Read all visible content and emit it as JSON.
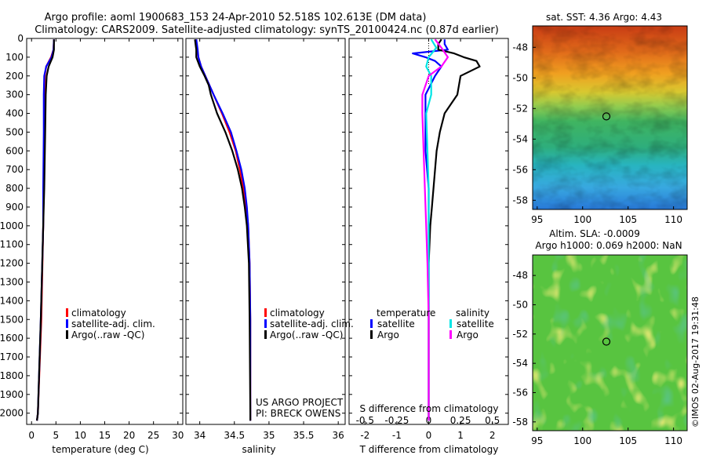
{
  "title": {
    "line1": "Argo profile: aoml 1900683_153 24-Apr-2010 52.518S 102.613E (DM data)",
    "line2": "Climatology: CARS2009. Satellite-adjusted climatology: synTS_20100424.nc (0.87d earlier)"
  },
  "colors": {
    "climatology": "#ff0000",
    "satellite": "#0000ff",
    "argo": "#000000",
    "sal_satellite": "#00e5e5",
    "sal_argo": "#ff00ff"
  },
  "project_note": {
    "line1": "US ARGO PROJECT",
    "line2": "PI: BRECK OWENS"
  },
  "watermark": "©IMOS 02-Aug-2017 19:31:48",
  "chart_data": [
    {
      "id": "temperature",
      "type": "line",
      "xlabel": "temperature (deg C)",
      "ylabel": "",
      "xlim": [
        -1,
        31
      ],
      "ylim": [
        2060,
        0
      ],
      "xticks": [
        "0",
        "5",
        "10",
        "15",
        "20",
        "25",
        "30"
      ],
      "xtick_values": [
        0,
        5,
        10,
        15,
        20,
        25,
        30
      ],
      "yticks": [
        "0",
        "100",
        "200",
        "300",
        "400",
        "500",
        "600",
        "700",
        "800",
        "900",
        "1000",
        "1100",
        "1200",
        "1300",
        "1400",
        "1500",
        "1600",
        "1700",
        "1800",
        "1900",
        "2000"
      ],
      "ytick_values": [
        0,
        100,
        200,
        300,
        400,
        500,
        600,
        700,
        800,
        900,
        1000,
        1100,
        1200,
        1300,
        1400,
        1500,
        1600,
        1700,
        1800,
        1900,
        2000
      ],
      "legend": [
        "climatology",
        "satellite-adj. clim.",
        "Argo(..raw -QC)"
      ],
      "series": [
        {
          "name": "climatology",
          "color": "#ff0000",
          "depth": [
            5,
            60,
            100,
            150,
            200,
            300,
            500,
            800,
            1000,
            1500,
            2000,
            2040
          ],
          "values": [
            4.6,
            4.5,
            4.0,
            3.0,
            2.7,
            2.6,
            2.6,
            2.5,
            2.4,
            2.0,
            1.3,
            1.1
          ]
        },
        {
          "name": "satellite-adj. clim.",
          "color": "#0000ff",
          "depth": [
            5,
            60,
            100,
            150,
            200,
            300,
            500,
            800,
            1000,
            1500,
            2000,
            2040
          ],
          "values": [
            4.6,
            4.5,
            4.1,
            3.0,
            2.6,
            2.5,
            2.5,
            2.4,
            2.4,
            1.9,
            1.3,
            1.1
          ]
        },
        {
          "name": "Argo(..raw -QC)",
          "color": "#000000",
          "depth": [
            5,
            60,
            100,
            150,
            200,
            300,
            500,
            800,
            1000,
            1500,
            2000,
            2040
          ],
          "values": [
            4.6,
            4.6,
            4.3,
            3.5,
            3.1,
            2.9,
            2.8,
            2.6,
            2.4,
            1.9,
            1.3,
            1.1
          ]
        }
      ]
    },
    {
      "id": "salinity",
      "type": "line",
      "xlabel": "salinity",
      "ylabel": "",
      "xlim": [
        33.8,
        36.1
      ],
      "ylim": [
        2060,
        0
      ],
      "xticks": [
        "34",
        "34.5",
        "35",
        "35.5",
        "36"
      ],
      "xtick_values": [
        34,
        34.5,
        35,
        35.5,
        36
      ],
      "legend": [
        "climatology",
        "satellite-adj. clim.",
        "Argo(..raw -QC)"
      ],
      "series": [
        {
          "name": "climatology",
          "color": "#ff0000",
          "depth": [
            5,
            60,
            100,
            150,
            200,
            250,
            300,
            400,
            500,
            600,
            700,
            800,
            900,
            1000,
            1200,
            1500,
            2000,
            2040
          ],
          "values": [
            33.95,
            33.96,
            33.98,
            34.02,
            34.08,
            34.14,
            34.2,
            34.32,
            34.43,
            34.52,
            34.58,
            34.63,
            34.67,
            34.7,
            34.72,
            34.73,
            34.73,
            34.73
          ]
        },
        {
          "name": "satellite-adj. clim.",
          "color": "#0000ff",
          "depth": [
            5,
            60,
            100,
            150,
            200,
            250,
            300,
            400,
            500,
            600,
            700,
            800,
            900,
            1000,
            1200,
            1500,
            2000,
            2040
          ],
          "values": [
            33.95,
            33.97,
            33.98,
            34.02,
            34.08,
            34.14,
            34.2,
            34.33,
            34.45,
            34.53,
            34.6,
            34.65,
            34.68,
            34.7,
            34.72,
            34.73,
            34.73,
            34.73
          ]
        },
        {
          "name": "Argo(..raw -QC)",
          "color": "#000000",
          "depth": [
            5,
            60,
            100,
            150,
            200,
            250,
            300,
            400,
            500,
            600,
            700,
            800,
            900,
            1000,
            1200,
            1500,
            2000,
            2040
          ],
          "values": [
            33.93,
            33.95,
            33.95,
            34.0,
            34.07,
            34.13,
            34.16,
            34.25,
            34.37,
            34.47,
            34.55,
            34.61,
            34.65,
            34.68,
            34.71,
            34.72,
            34.73,
            34.73
          ]
        }
      ]
    },
    {
      "id": "difference",
      "type": "line",
      "xlabel": "T difference from climatology",
      "x2label": "S difference from climatology",
      "ylabel": "",
      "xlim": [
        -2.5,
        2.5
      ],
      "x2lim": [
        -0.625,
        0.625
      ],
      "ylim": [
        2060,
        0
      ],
      "xticks": [
        "-2",
        "-1",
        "0",
        "1",
        "2"
      ],
      "xtick_values": [
        -2,
        -1,
        0,
        1,
        2
      ],
      "x2ticks": [
        "-0.5",
        "-0.25",
        "0",
        "0.25",
        "0.5"
      ],
      "x2tick_values": [
        -0.5,
        -0.25,
        0,
        0.25,
        0.5
      ],
      "legend": {
        "temperature": [
          "satellite",
          "Argo"
        ],
        "salinity": [
          "satellite",
          "Argo"
        ]
      },
      "legend_titles": [
        "temperature",
        "salinity"
      ],
      "series": [
        {
          "name": "temperature satellite",
          "color": "#0000ff",
          "depth": [
            5,
            30,
            60,
            80,
            100,
            120,
            150,
            200,
            300,
            400,
            600,
            800,
            1000,
            1500,
            2000,
            2040
          ],
          "values": [
            0.5,
            0.5,
            0.6,
            -0.5,
            -0.1,
            0.2,
            0.4,
            0.2,
            -0.1,
            -0.1,
            -0.1,
            0.0,
            0.0,
            0.0,
            0.0,
            0.0
          ]
        },
        {
          "name": "temperature Argo",
          "color": "#000000",
          "depth": [
            5,
            30,
            60,
            80,
            100,
            120,
            150,
            200,
            300,
            400,
            500,
            600,
            700,
            800,
            900,
            1000,
            1200,
            1500,
            2000,
            2040
          ],
          "values": [
            0.4,
            0.3,
            0.3,
            0.8,
            1.1,
            1.5,
            1.6,
            1.0,
            0.9,
            0.5,
            0.35,
            0.25,
            0.2,
            0.15,
            0.1,
            0.05,
            0.0,
            0.0,
            0.0,
            0.0
          ]
        },
        {
          "name": "salinity satellite",
          "color": "#00e5e5",
          "depth": [
            5,
            50,
            100,
            150,
            200,
            300,
            400,
            600,
            800,
            1000,
            1500,
            2000,
            2040
          ],
          "values": [
            0.02,
            0.06,
            0.0,
            -0.02,
            0.02,
            0.02,
            -0.02,
            -0.01,
            0.0,
            0.0,
            0.0,
            0.0,
            0.0
          ]
        },
        {
          "name": "salinity Argo",
          "color": "#ff00ff",
          "depth": [
            5,
            50,
            100,
            150,
            200,
            300,
            400,
            600,
            800,
            1000,
            1200,
            1500,
            2000,
            2040
          ],
          "values": [
            0.05,
            0.1,
            0.15,
            0.1,
            0.0,
            -0.05,
            -0.05,
            -0.04,
            -0.03,
            -0.02,
            -0.01,
            0.0,
            0.0,
            0.0
          ]
        }
      ]
    },
    {
      "id": "sst_map",
      "type": "heatmap",
      "title": "sat. SST: 4.36 Argo: 4.43",
      "xlim": [
        94.5,
        111.5
      ],
      "ylim": [
        -58.6,
        -46.6
      ],
      "xticks": [
        "95",
        "100",
        "105",
        "110"
      ],
      "xtick_values": [
        95,
        100,
        105,
        110
      ],
      "yticks": [
        "-48",
        "-50",
        "-52",
        "-54",
        "-56",
        "-58"
      ],
      "ytick_values": [
        -48,
        -50,
        -52,
        -54,
        -56,
        -58
      ],
      "marker": {
        "lon": 102.613,
        "lat": -52.518
      }
    },
    {
      "id": "sla_map",
      "type": "heatmap",
      "title": "Altim. SLA: -0.0009",
      "subtitle": "Argo h1000: 0.069 h2000: NaN",
      "xlim": [
        94.5,
        111.5
      ],
      "ylim": [
        -58.6,
        -46.6
      ],
      "xticks": [
        "95",
        "100",
        "105",
        "110"
      ],
      "xtick_values": [
        95,
        100,
        105,
        110
      ],
      "yticks": [
        "-48",
        "-50",
        "-52",
        "-54",
        "-56",
        "-58"
      ],
      "ytick_values": [
        -48,
        -50,
        -52,
        -54,
        -56,
        -58
      ],
      "marker": {
        "lon": 102.613,
        "lat": -52.518
      }
    }
  ]
}
